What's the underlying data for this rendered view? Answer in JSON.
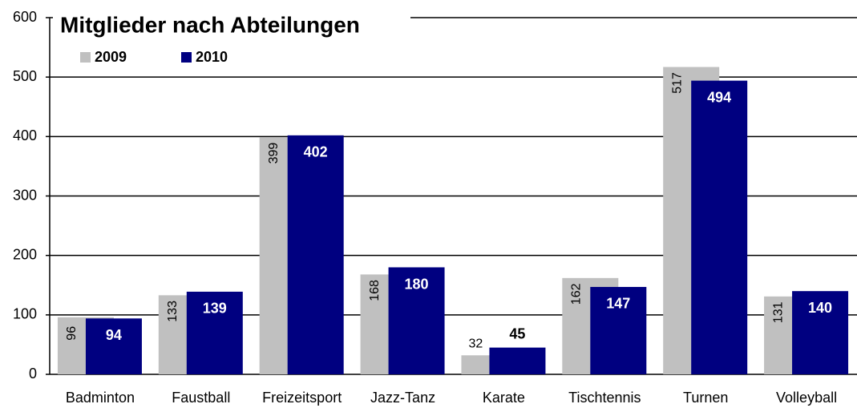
{
  "chart_data": {
    "type": "bar",
    "title": "Mitglieder nach Abteilungen",
    "categories": [
      "Badminton",
      "Faustball",
      "Freizeitsport",
      "Jazz-Tanz",
      "Karate",
      "Tischtennis",
      "Turnen",
      "Volleyball"
    ],
    "series": [
      {
        "name": "2009",
        "color": "#c0c0c0",
        "values": [
          96,
          133,
          399,
          168,
          32,
          162,
          517,
          131
        ]
      },
      {
        "name": "2010",
        "color": "#000080",
        "values": [
          94,
          139,
          402,
          180,
          45,
          147,
          494,
          140
        ]
      }
    ],
    "ylim": [
      0,
      600
    ],
    "yticks": [
      0,
      100,
      200,
      300,
      400,
      500,
      600
    ],
    "grid": true,
    "legend": "top-left"
  }
}
